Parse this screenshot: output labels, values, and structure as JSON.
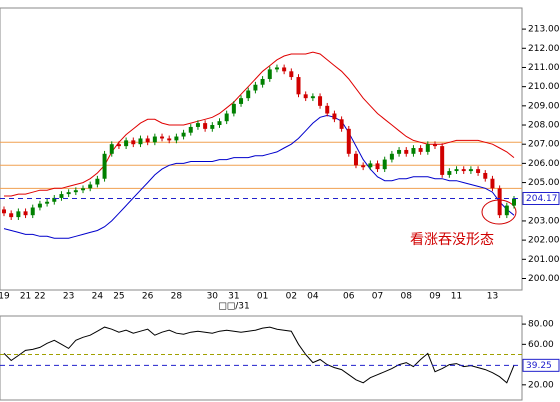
{
  "chart_data": [
    {
      "type": "candlestick",
      "categories": [
        "19",
        null,
        null,
        "21",
        null,
        "22",
        null,
        null,
        null,
        "23",
        null,
        null,
        null,
        "24",
        null,
        null,
        "25",
        null,
        null,
        null,
        "26",
        null,
        null,
        null,
        "28",
        null,
        null,
        null,
        null,
        "30",
        null,
        null,
        "31",
        null,
        null,
        null,
        "01",
        null,
        null,
        null,
        "02",
        null,
        null,
        "04",
        null,
        null,
        null,
        null,
        "06",
        null,
        null,
        null,
        "07",
        null,
        null,
        null,
        "08",
        null,
        null,
        null,
        "09",
        null,
        null,
        "11",
        null,
        null,
        null,
        null,
        "13",
        null,
        null,
        null
      ],
      "period_label": "□□/31",
      "annotation": "看涨吞没形态",
      "up_color": "#008000",
      "down_color": "#d00000",
      "ohlc": [
        [
          203.6,
          203.75,
          203.25,
          203.4
        ],
        [
          203.4,
          203.55,
          203.05,
          203.2
        ],
        [
          203.2,
          203.65,
          203.05,
          203.5
        ],
        [
          203.5,
          203.65,
          203.15,
          203.3
        ],
        [
          203.3,
          203.85,
          203.15,
          203.7
        ],
        [
          203.7,
          204.05,
          203.55,
          203.9
        ],
        [
          203.9,
          204.15,
          203.75,
          204.0
        ],
        [
          204.0,
          204.35,
          203.85,
          204.2
        ],
        [
          204.2,
          204.55,
          204.05,
          204.4
        ],
        [
          204.4,
          204.65,
          204.25,
          204.5
        ],
        [
          204.5,
          204.75,
          204.35,
          204.6
        ],
        [
          204.6,
          204.85,
          204.45,
          204.7
        ],
        [
          204.7,
          205.05,
          204.55,
          204.9
        ],
        [
          204.9,
          205.35,
          204.75,
          205.2
        ],
        [
          205.2,
          206.65,
          205.05,
          206.5
        ],
        [
          206.5,
          207.15,
          206.35,
          207.0
        ],
        [
          207.0,
          207.15,
          206.75,
          206.9
        ],
        [
          206.9,
          207.35,
          206.75,
          207.2
        ],
        [
          207.2,
          207.35,
          206.85,
          207.0
        ],
        [
          207.0,
          207.45,
          206.85,
          207.3
        ],
        [
          207.3,
          207.45,
          206.95,
          207.1
        ],
        [
          207.1,
          207.55,
          206.95,
          207.4
        ],
        [
          207.4,
          207.55,
          207.15,
          207.3
        ],
        [
          207.3,
          207.45,
          207.05,
          207.2
        ],
        [
          207.2,
          207.55,
          207.05,
          207.4
        ],
        [
          207.4,
          207.75,
          207.25,
          207.6
        ],
        [
          207.6,
          208.05,
          207.45,
          207.9
        ],
        [
          207.9,
          208.25,
          207.75,
          208.1
        ],
        [
          208.1,
          208.25,
          207.65,
          207.8
        ],
        [
          207.8,
          208.15,
          207.65,
          208.0
        ],
        [
          208.0,
          208.35,
          207.85,
          208.2
        ],
        [
          208.2,
          208.75,
          208.05,
          208.6
        ],
        [
          208.6,
          209.25,
          208.45,
          209.1
        ],
        [
          209.1,
          209.55,
          208.95,
          209.4
        ],
        [
          209.4,
          209.95,
          209.25,
          209.8
        ],
        [
          209.8,
          210.25,
          209.65,
          210.1
        ],
        [
          210.1,
          210.55,
          209.95,
          210.4
        ],
        [
          210.4,
          211.05,
          210.25,
          210.9
        ],
        [
          210.9,
          211.15,
          210.75,
          211.0
        ],
        [
          211.0,
          211.15,
          210.65,
          210.8
        ],
        [
          210.8,
          210.95,
          210.35,
          210.5
        ],
        [
          210.5,
          210.65,
          209.45,
          209.6
        ],
        [
          209.6,
          209.75,
          209.25,
          209.4
        ],
        [
          209.4,
          209.65,
          209.25,
          209.5
        ],
        [
          209.5,
          209.65,
          208.85,
          209.0
        ],
        [
          209.0,
          209.15,
          208.45,
          208.6
        ],
        [
          208.6,
          208.75,
          208.15,
          208.3
        ],
        [
          208.3,
          208.45,
          207.65,
          207.8
        ],
        [
          207.8,
          207.95,
          206.35,
          206.5
        ],
        [
          206.5,
          206.65,
          205.75,
          205.9
        ],
        [
          205.9,
          206.05,
          205.65,
          205.8
        ],
        [
          205.8,
          206.15,
          205.65,
          206.0
        ],
        [
          206.0,
          206.15,
          205.55,
          205.7
        ],
        [
          205.7,
          206.35,
          205.55,
          206.2
        ],
        [
          206.2,
          206.65,
          206.05,
          206.5
        ],
        [
          206.5,
          206.85,
          206.35,
          206.7
        ],
        [
          206.7,
          206.85,
          206.35,
          206.5
        ],
        [
          206.5,
          206.95,
          206.35,
          206.8
        ],
        [
          206.8,
          206.95,
          206.45,
          206.6
        ],
        [
          206.6,
          207.15,
          206.45,
          207.0
        ],
        [
          207.0,
          207.15,
          206.75,
          206.9
        ],
        [
          206.9,
          207.05,
          205.25,
          205.4
        ],
        [
          205.4,
          205.75,
          205.25,
          205.6
        ],
        [
          205.6,
          205.85,
          205.45,
          205.7
        ],
        [
          205.7,
          205.85,
          205.45,
          205.6
        ],
        [
          205.6,
          205.85,
          205.45,
          205.7
        ],
        [
          205.7,
          205.85,
          205.35,
          205.5
        ],
        [
          205.5,
          205.65,
          205.05,
          205.2
        ],
        [
          205.2,
          205.35,
          204.55,
          204.7
        ],
        [
          204.7,
          204.85,
          203.15,
          203.3
        ],
        [
          203.3,
          203.95,
          203.15,
          203.8
        ],
        [
          203.8,
          204.3,
          203.65,
          204.17
        ]
      ],
      "series": [
        {
          "color": "#e00000",
          "values": [
            204.3,
            204.3,
            204.4,
            204.4,
            204.5,
            204.6,
            204.6,
            204.7,
            204.7,
            204.8,
            204.9,
            205.0,
            205.2,
            205.5,
            205.9,
            206.6,
            207.1,
            207.5,
            207.8,
            208.1,
            208.3,
            208.3,
            208.1,
            208.0,
            208.0,
            208.0,
            208.1,
            208.2,
            208.3,
            208.4,
            208.6,
            208.9,
            209.2,
            209.6,
            210.0,
            210.4,
            210.8,
            211.1,
            211.4,
            211.6,
            211.7,
            211.7,
            211.7,
            211.8,
            211.7,
            211.4,
            211.1,
            210.8,
            210.4,
            209.9,
            209.4,
            209.0,
            208.6,
            208.3,
            208.0,
            207.7,
            207.4,
            207.2,
            207.1,
            207.0,
            207.0,
            207.0,
            207.1,
            207.2,
            207.2,
            207.2,
            207.2,
            207.1,
            207.0,
            206.8,
            206.6,
            206.3
          ]
        },
        {
          "color": "#0000cc",
          "values": [
            202.6,
            202.5,
            202.4,
            202.3,
            202.3,
            202.2,
            202.2,
            202.1,
            202.1,
            202.1,
            202.2,
            202.3,
            202.4,
            202.5,
            202.7,
            203.0,
            203.4,
            203.8,
            204.2,
            204.6,
            205.0,
            205.4,
            205.7,
            205.9,
            206.0,
            206.0,
            206.1,
            206.1,
            206.1,
            206.1,
            206.2,
            206.2,
            206.3,
            206.3,
            206.3,
            206.4,
            206.4,
            206.5,
            206.6,
            206.8,
            207.0,
            207.3,
            207.7,
            208.1,
            208.4,
            208.5,
            208.4,
            208.2,
            207.6,
            206.9,
            206.2,
            205.7,
            205.3,
            205.1,
            205.1,
            205.2,
            205.2,
            205.3,
            205.3,
            205.3,
            205.2,
            205.2,
            205.1,
            205.1,
            205.0,
            204.9,
            204.8,
            204.7,
            204.5,
            204.0,
            203.6,
            203.3
          ]
        }
      ],
      "hlines": [
        207.1,
        205.9,
        204.7
      ],
      "hline_color": "#f0a050",
      "last_color": "#2020cc",
      "ylim": [
        199.4,
        214.1
      ],
      "yticks": [
        {
          "value": 200,
          "label": "200.00"
        },
        {
          "value": 201,
          "label": "201.00"
        },
        {
          "value": 202,
          "label": "202.00"
        },
        {
          "value": 203,
          "label": "203.00"
        },
        {
          "value": 205,
          "label": "205.00"
        },
        {
          "value": 206,
          "label": "206.00"
        },
        {
          "value": 207,
          "label": "207.00"
        },
        {
          "value": 208,
          "label": "208.00"
        },
        {
          "value": 209,
          "label": "209.00"
        },
        {
          "value": 210,
          "label": "210.00"
        },
        {
          "value": 211,
          "label": "211.00"
        },
        {
          "value": 212,
          "label": "212.00"
        },
        {
          "value": 213,
          "label": "213.00"
        }
      ]
    },
    {
      "type": "line",
      "color": "#000000",
      "values": [
        51,
        44,
        49,
        54,
        55,
        57,
        61,
        64,
        60,
        56,
        64,
        67,
        69,
        73,
        77,
        75,
        72,
        74,
        71,
        73,
        75,
        69,
        72,
        74,
        71,
        70,
        72,
        73,
        72,
        71,
        73,
        74,
        73,
        72,
        73,
        74,
        76,
        77,
        75,
        74,
        73,
        60,
        50,
        42,
        45,
        40,
        37,
        35,
        30,
        25,
        22,
        27,
        30,
        33,
        36,
        40,
        42,
        38,
        45,
        51,
        33,
        36,
        40,
        41,
        38,
        39,
        37,
        35,
        32,
        28,
        22,
        39.25
      ],
      "hlines": [
        50
      ],
      "hline_color": "#a0a000",
      "last_color": "#2020cc",
      "ylim": [
        5,
        88
      ],
      "yticks": [
        {
          "value": 20,
          "label": "20.00"
        },
        {
          "value": 60,
          "label": "60.00"
        },
        {
          "value": 80,
          "label": "80.00"
        }
      ]
    }
  ]
}
